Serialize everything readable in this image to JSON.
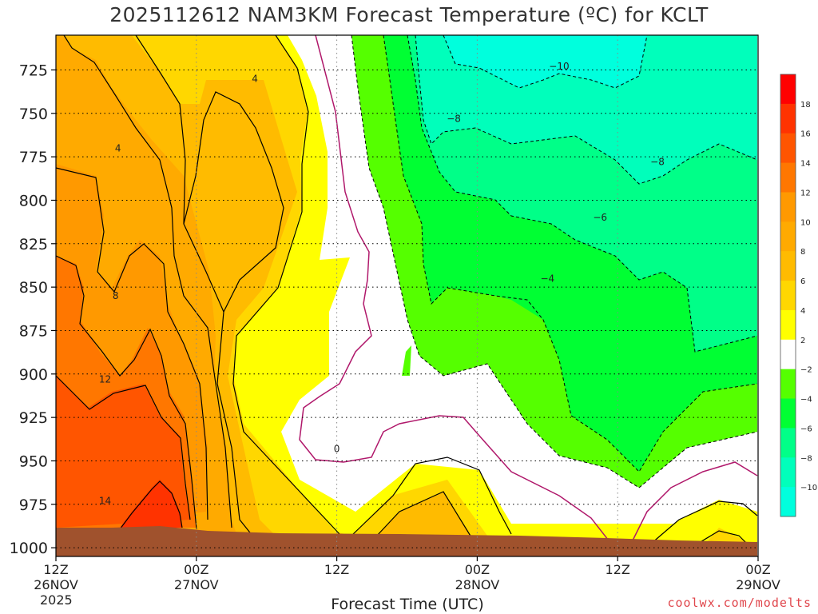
{
  "title": "2025112612 NAM3KM Forecast Temperature (ºC) for KCLT",
  "xlabel": "Forecast Time (UTC)",
  "credit": "coolwx.com/modelts",
  "chart_data": {
    "type": "contour-filled",
    "title": "2025112612 NAM3KM Forecast Temperature (ºC) for KCLT",
    "xlabel": "Forecast Time (UTC)",
    "ylabel": "",
    "x_ticks": [
      {
        "hour": 0,
        "lines": [
          "12Z",
          "26NOV",
          "2025"
        ]
      },
      {
        "hour": 12,
        "lines": [
          "00Z",
          "27NOV"
        ]
      },
      {
        "hour": 24,
        "lines": [
          "12Z",
          ""
        ]
      },
      {
        "hour": 36,
        "lines": [
          "00Z",
          "28NOV"
        ]
      },
      {
        "hour": 48,
        "lines": [
          "12Z",
          ""
        ]
      },
      {
        "hour": 60,
        "lines": [
          "00Z",
          "29NOV"
        ]
      }
    ],
    "xlim": [
      0,
      60
    ],
    "y_ticks": [
      725,
      750,
      775,
      800,
      825,
      850,
      875,
      900,
      925,
      950,
      975,
      1000
    ],
    "ylim": [
      1005,
      705
    ],
    "y_scale": "pressure (hPa), inverted",
    "colorbar": {
      "labels": [
        18,
        16,
        14,
        12,
        10,
        8,
        6,
        4,
        2,
        -2,
        -4,
        -6,
        -8,
        -10
      ],
      "bands": [
        {
          "range": [
            18,
            20
          ],
          "color": "#ff0000"
        },
        {
          "range": [
            16,
            18
          ],
          "color": "#ff3300"
        },
        {
          "range": [
            14,
            16
          ],
          "color": "#ff5500"
        },
        {
          "range": [
            12,
            14
          ],
          "color": "#ff7700"
        },
        {
          "range": [
            10,
            12
          ],
          "color": "#ff9900"
        },
        {
          "range": [
            8,
            10
          ],
          "color": "#ffaa00"
        },
        {
          "range": [
            6,
            8
          ],
          "color": "#ffbb00"
        },
        {
          "range": [
            4,
            6
          ],
          "color": "#ffd700"
        },
        {
          "range": [
            2,
            4
          ],
          "color": "#ffff00"
        },
        {
          "range": [
            -2,
            2
          ],
          "color": "#ffffff"
        },
        {
          "range": [
            -4,
            -2
          ],
          "color": "#55ff00"
        },
        {
          "range": [
            -6,
            -4
          ],
          "color": "#00ff33"
        },
        {
          "range": [
            -8,
            -6
          ],
          "color": "#00ff88"
        },
        {
          "range": [
            -10,
            -8
          ],
          "color": "#00ffbb"
        },
        {
          "range": [
            -12,
            -10
          ],
          "color": "#00ffdd"
        }
      ]
    },
    "contour_labels": [
      {
        "value": "4",
        "hour": 17.0,
        "p": 730
      },
      {
        "value": "4",
        "hour": 5.3,
        "p": 770
      },
      {
        "value": "8",
        "hour": 5.1,
        "p": 855
      },
      {
        "value": "12",
        "hour": 4.2,
        "p": 903
      },
      {
        "value": "14",
        "hour": 4.2,
        "p": 973
      },
      {
        "value": "0",
        "hour": 24.0,
        "p": 943
      },
      {
        "value": "−10",
        "hour": 43.0,
        "p": 723
      },
      {
        "value": "−8",
        "hour": 34.0,
        "p": 753
      },
      {
        "value": "−8",
        "hour": 51.4,
        "p": 778
      },
      {
        "value": "−6",
        "hour": 46.5,
        "p": 810
      },
      {
        "value": "−4",
        "hour": 42.0,
        "p": 845
      }
    ],
    "grid": "dotted",
    "ground_color": "#a0522d"
  }
}
